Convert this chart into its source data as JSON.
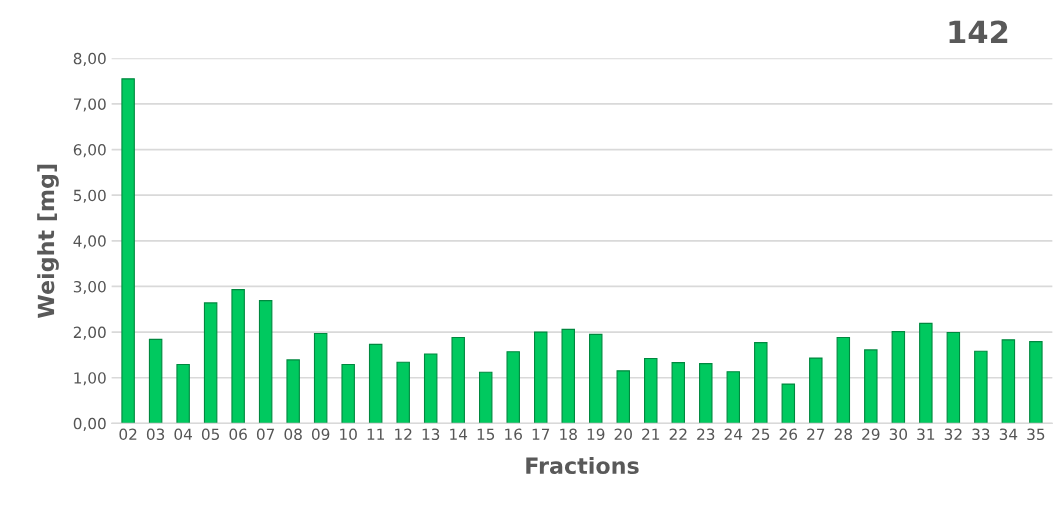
{
  "chart_data": {
    "type": "bar",
    "title": "142",
    "xlabel": "Fractions",
    "ylabel": "Weight [mg]",
    "categories": [
      "02",
      "03",
      "04",
      "05",
      "06",
      "07",
      "08",
      "09",
      "10",
      "11",
      "12",
      "13",
      "14",
      "15",
      "16",
      "17",
      "18",
      "19",
      "20",
      "21",
      "22",
      "23",
      "24",
      "25",
      "26",
      "27",
      "28",
      "29",
      "30",
      "31",
      "32",
      "33",
      "34",
      "35"
    ],
    "values": [
      7.55,
      1.84,
      1.29,
      2.64,
      2.93,
      2.69,
      1.39,
      1.97,
      1.29,
      1.73,
      1.34,
      1.52,
      1.88,
      1.12,
      1.57,
      2.0,
      2.06,
      1.95,
      1.15,
      1.42,
      1.33,
      1.31,
      1.13,
      1.77,
      0.86,
      1.43,
      1.88,
      1.61,
      2.01,
      2.19,
      1.99,
      1.58,
      1.83,
      1.79
    ],
    "color": "#00c95f",
    "ylim": [
      0,
      8
    ],
    "yticks": [
      {
        "value": 0,
        "label": "0,00"
      },
      {
        "value": 1,
        "label": "1,00"
      },
      {
        "value": 2,
        "label": "2,00"
      },
      {
        "value": 3,
        "label": "3,00"
      },
      {
        "value": 4,
        "label": "4,00"
      },
      {
        "value": 5,
        "label": "5,00"
      },
      {
        "value": 6,
        "label": "6,00"
      },
      {
        "value": 7,
        "label": "7,00"
      },
      {
        "value": 8,
        "label": "8,00"
      }
    ],
    "grid": "y"
  }
}
